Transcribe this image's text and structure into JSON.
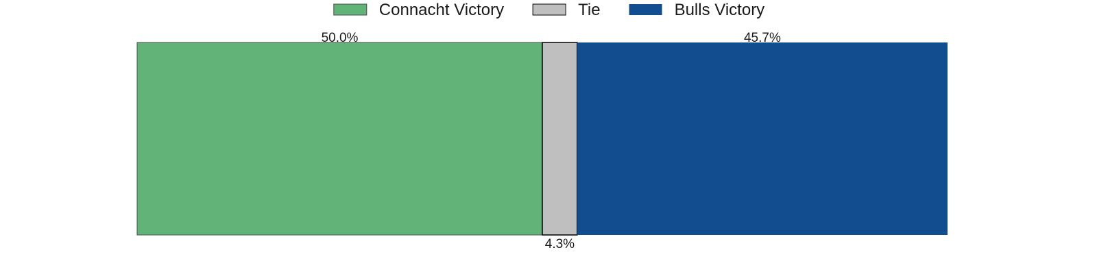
{
  "chart_data": {
    "type": "bar",
    "orientation": "horizontal",
    "stacked": true,
    "title": "",
    "xlabel": "",
    "ylabel": "",
    "xlim": [
      0,
      100
    ],
    "grid": false,
    "legend_position": "top-center",
    "series": [
      {
        "name": "Connacht Victory",
        "value": 50.0,
        "label": "50.0%",
        "label_position": "above",
        "color": "#61b377"
      },
      {
        "name": "Tie",
        "value": 4.3,
        "label": "4.3%",
        "label_position": "below",
        "color": "#bfbfbf"
      },
      {
        "name": "Bulls Victory",
        "value": 45.7,
        "label": "45.7%",
        "label_position": "above",
        "color": "#124e8f"
      }
    ]
  }
}
